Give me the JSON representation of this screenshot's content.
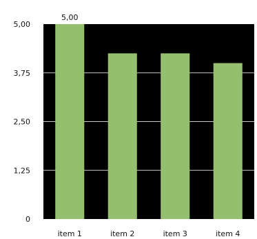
{
  "chart_data": {
    "type": "bar",
    "categories": [
      "item 1",
      "item 2",
      "item 3",
      "item 4"
    ],
    "values": [
      5.0,
      4.25,
      4.25,
      4.0
    ],
    "value_labels": [
      "5,00",
      "",
      "",
      ""
    ],
    "yticks": [
      0,
      1.25,
      2.5,
      3.75,
      5.0
    ],
    "ytick_labels": [
      "0",
      "1,25",
      "2,50",
      "3,75",
      "5,00"
    ],
    "ylim": [
      0,
      5.0
    ],
    "title": "",
    "xlabel": "",
    "ylabel": "",
    "grid": true,
    "legend": "none",
    "colors": {
      "bar": "#94bf6e",
      "plot_background": "#000000",
      "gridline": "#c8c8c8",
      "text": "#111111"
    }
  }
}
